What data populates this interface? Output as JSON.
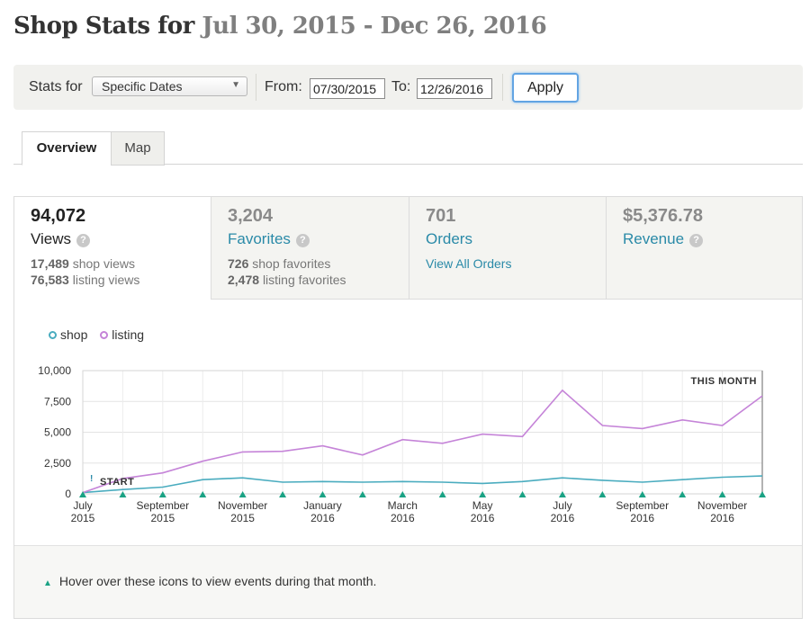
{
  "header": {
    "title_lead": "Shop Stats for",
    "title_range": "Jul 30, 2015 - Dec 26, 2016"
  },
  "filter": {
    "stats_for_label": "Stats for",
    "range_select": "Specific Dates",
    "from_label": "From:",
    "from_value": "07/30/2015",
    "to_label": "To:",
    "to_value": "12/26/2016",
    "apply_label": "Apply"
  },
  "tabs": [
    {
      "label": "Overview"
    },
    {
      "label": "Map"
    }
  ],
  "metrics": {
    "views": {
      "value": "94,072",
      "label": "Views",
      "shop_count": "17,489",
      "shop_text": "shop views",
      "listing_count": "76,583",
      "listing_text": "listing views"
    },
    "favorites": {
      "value": "3,204",
      "label": "Favorites",
      "shop_count": "726",
      "shop_text": "shop favorites",
      "listing_count": "2,478",
      "listing_text": "listing favorites"
    },
    "orders": {
      "value": "701",
      "label": "Orders",
      "link": "View All Orders"
    },
    "revenue": {
      "value": "$5,376.78",
      "label": "Revenue"
    }
  },
  "legend": {
    "shop": "shop",
    "listing": "listing"
  },
  "footer": {
    "note": "Hover over these icons to view events during that month."
  },
  "colors": {
    "shop": "#4aacbf",
    "listing": "#c584d8",
    "event_marker": "#1aa284",
    "link": "#2a8aa8"
  },
  "chart_data": {
    "type": "line",
    "x": [
      "2015-07",
      "2015-08",
      "2015-09",
      "2015-10",
      "2015-11",
      "2015-12",
      "2016-01",
      "2016-02",
      "2016-03",
      "2016-04",
      "2016-05",
      "2016-06",
      "2016-07",
      "2016-08",
      "2016-09",
      "2016-10",
      "2016-11",
      "2016-12"
    ],
    "x_tick_labels": [
      {
        "month": "July",
        "year": "2015"
      },
      {
        "month": "September",
        "year": "2015"
      },
      {
        "month": "November",
        "year": "2015"
      },
      {
        "month": "January",
        "year": "2016"
      },
      {
        "month": "March",
        "year": "2016"
      },
      {
        "month": "May",
        "year": "2016"
      },
      {
        "month": "July",
        "year": "2016"
      },
      {
        "month": "September",
        "year": "2016"
      },
      {
        "month": "November",
        "year": "2016"
      }
    ],
    "series": [
      {
        "name": "shop",
        "values": [
          100,
          350,
          550,
          1150,
          1300,
          950,
          1000,
          950,
          1000,
          950,
          850,
          1000,
          1300,
          1100,
          950,
          1150,
          1350,
          1450
        ]
      },
      {
        "name": "listing",
        "values": [
          100,
          1250,
          1700,
          2650,
          3400,
          3450,
          3900,
          3150,
          4400,
          4100,
          4850,
          4650,
          8400,
          5550,
          5300,
          6000,
          5550,
          7950
        ]
      }
    ],
    "ylim": [
      0,
      10000
    ],
    "y_ticks": [
      "0",
      "2,500",
      "5,000",
      "7,500",
      "10,000"
    ],
    "y_tick_values": [
      0,
      2500,
      5000,
      7500,
      10000
    ],
    "grid": true,
    "annotations": {
      "start": "START",
      "start_marker": "!",
      "current_month": "THIS MONTH"
    }
  }
}
